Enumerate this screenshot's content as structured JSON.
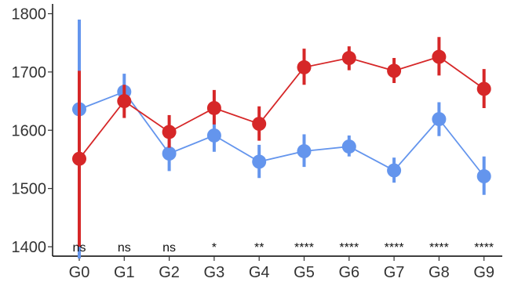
{
  "chart_data": {
    "type": "line",
    "title": "",
    "xlabel": "",
    "ylabel": "",
    "categories": [
      "G0",
      "G1",
      "G2",
      "G3",
      "G4",
      "G5",
      "G6",
      "G7",
      "G8",
      "G9"
    ],
    "ylim": [
      1390,
      1810
    ],
    "y_ticks": [
      1400,
      1500,
      1600,
      1700,
      1800
    ],
    "series": [
      {
        "color": "#6495ED",
        "values": [
          1636,
          1666,
          1560,
          1591,
          1546,
          1564,
          1572,
          1531,
          1619,
          1521
        ],
        "err_low": [
          1380,
          1640,
          1530,
          1563,
          1518,
          1537,
          1555,
          1510,
          1590,
          1489
        ],
        "err_high": [
          1790,
          1697,
          1590,
          1618,
          1575,
          1593,
          1591,
          1553,
          1648,
          1555
        ]
      },
      {
        "color": "#D62728",
        "values": [
          1551,
          1650,
          1597,
          1638,
          1611,
          1708,
          1724,
          1702,
          1726,
          1671
        ],
        "err_low": [
          1400,
          1621,
          1570,
          1610,
          1582,
          1678,
          1703,
          1681,
          1694,
          1638
        ],
        "err_high": [
          1702,
          1678,
          1626,
          1669,
          1641,
          1740,
          1744,
          1724,
          1760,
          1705
        ]
      }
    ],
    "significance": [
      "ns",
      "ns",
      "ns",
      "*",
      "**",
      "****",
      "****",
      "****",
      "****",
      "****"
    ],
    "grid": false,
    "legend": "none"
  }
}
